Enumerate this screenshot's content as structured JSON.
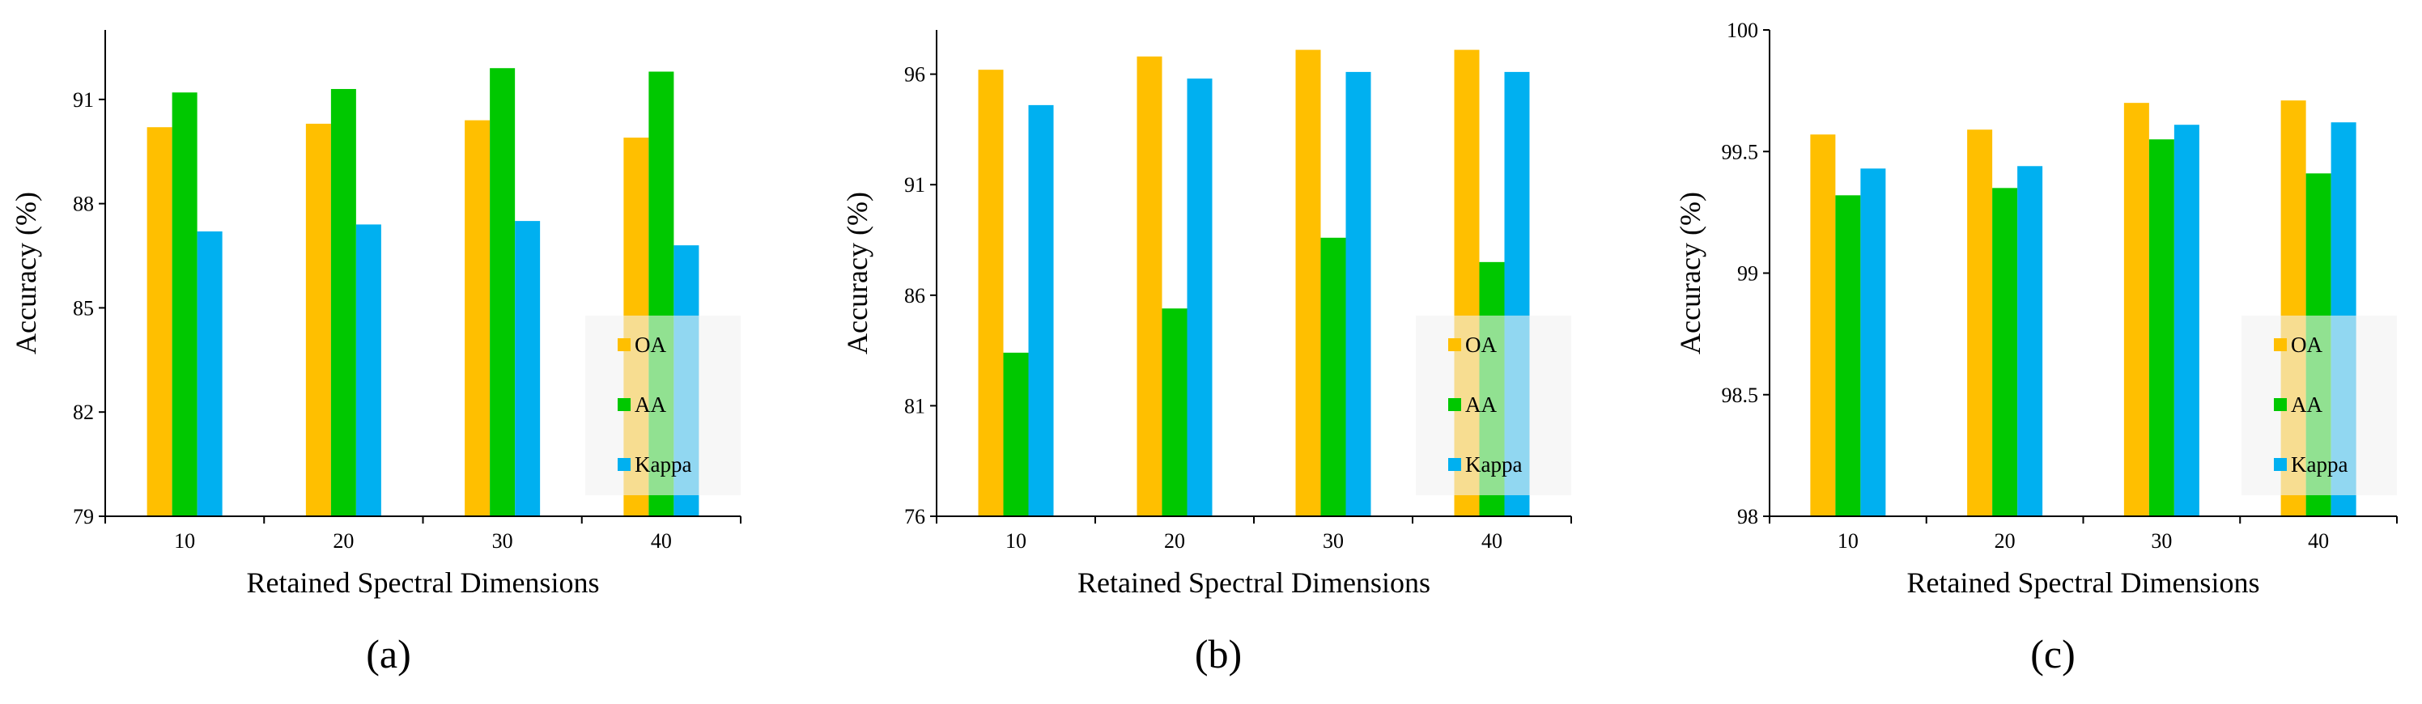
{
  "colors": {
    "OA": "#FFBF00",
    "AA": "#00C800",
    "Kappa": "#00B0F0",
    "legend_box": "#F2F2F2",
    "axis": "#000000"
  },
  "chart_data": [
    {
      "type": "bar",
      "panel_label": "(a)",
      "title": "",
      "xlabel": "Retained Spectral Dimensions",
      "ylabel": "Accuracy (%)",
      "categories": [
        "10",
        "20",
        "30",
        "40"
      ],
      "yticks": [
        "79",
        "82",
        "85",
        "88",
        "91"
      ],
      "ylim": [
        79,
        93
      ],
      "series": [
        {
          "name": "OA",
          "values": [
            90.2,
            90.3,
            90.4,
            89.9
          ]
        },
        {
          "name": "AA",
          "values": [
            91.2,
            91.3,
            91.9,
            91.8
          ]
        },
        {
          "name": "Kappa",
          "values": [
            87.2,
            87.4,
            87.5,
            86.8
          ]
        }
      ],
      "legend": [
        "OA",
        "AA",
        "Kappa"
      ],
      "legend_placement": "lower-right"
    },
    {
      "type": "bar",
      "panel_label": "(b)",
      "title": "",
      "xlabel": "Retained Spectral Dimensions",
      "ylabel": "Accuracy (%)",
      "categories": [
        "10",
        "20",
        "30",
        "40"
      ],
      "yticks": [
        "76",
        "81",
        "86",
        "91",
        "96"
      ],
      "ylim": [
        76,
        98
      ],
      "series": [
        {
          "name": "OA",
          "values": [
            96.2,
            96.8,
            97.1,
            97.1
          ]
        },
        {
          "name": "AA",
          "values": [
            83.4,
            85.4,
            88.6,
            87.5
          ]
        },
        {
          "name": "Kappa",
          "values": [
            94.6,
            95.8,
            96.1,
            96.1
          ]
        }
      ],
      "legend": [
        "OA",
        "AA",
        "Kappa"
      ],
      "legend_placement": "lower-right"
    },
    {
      "type": "bar",
      "panel_label": "(c)",
      "title": "",
      "xlabel": "Retained Spectral Dimensions",
      "ylabel": "Accuracy (%)",
      "categories": [
        "10",
        "20",
        "30",
        "40"
      ],
      "yticks": [
        "98",
        "98.5",
        "99",
        "99.5",
        "100"
      ],
      "ylim": [
        98,
        100
      ],
      "series": [
        {
          "name": "OA",
          "values": [
            99.57,
            99.59,
            99.7,
            99.71
          ]
        },
        {
          "name": "AA",
          "values": [
            99.32,
            99.35,
            99.55,
            99.41
          ]
        },
        {
          "name": "Kappa",
          "values": [
            99.43,
            99.44,
            99.61,
            99.62
          ]
        }
      ],
      "legend": [
        "OA",
        "AA",
        "Kappa"
      ],
      "legend_placement": "lower-right"
    }
  ]
}
